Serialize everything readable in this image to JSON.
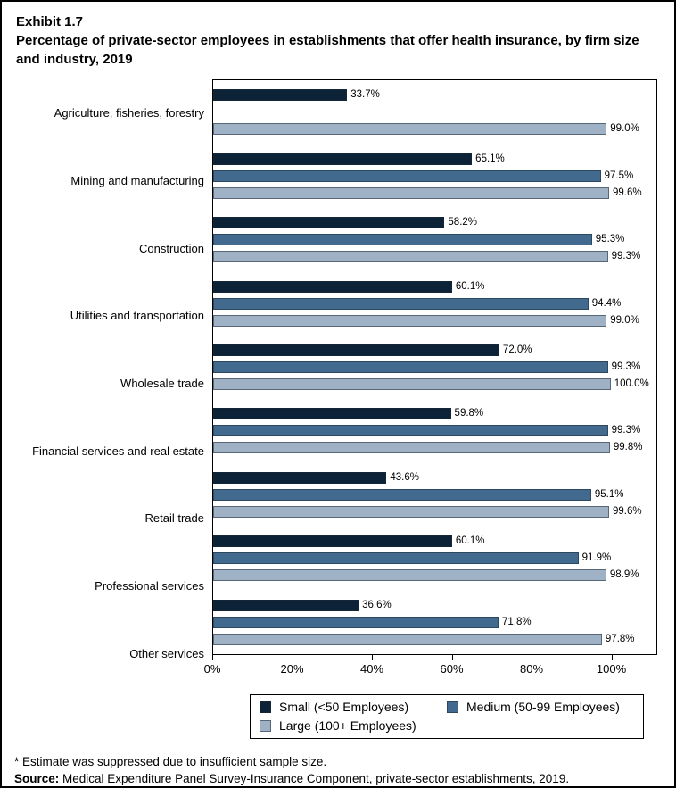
{
  "header": {
    "exhibit_label": "Exhibit 1.7",
    "title": "Percentage of private-sector employees in establishments that offer health insurance, by firm size and industry, 2019"
  },
  "chart_data": {
    "type": "bar",
    "orientation": "horizontal",
    "title": "Percentage of private-sector employees in establishments that offer health insurance, by firm size and industry, 2019",
    "xlabel": "",
    "ylabel": "",
    "xlim": [
      0,
      100
    ],
    "axis_display_max": 111.5,
    "grid": false,
    "legend_position": "bottom",
    "value_suffix": "%",
    "categories": [
      "Agriculture, fisheries, forestry",
      "Mining and manufacturing",
      "Construction",
      "Utilities and transportation",
      "Wholesale trade",
      "Financial services and real estate",
      "Retail trade",
      "Professional services",
      "Other services"
    ],
    "series": [
      {
        "key": "small",
        "name": "Small (<50 Employees)",
        "color": "#0c2337",
        "values": [
          33.7,
          65.1,
          58.2,
          60.1,
          72.0,
          59.8,
          43.6,
          60.1,
          36.6
        ],
        "value_labels": [
          "33.7%",
          "65.1%",
          "58.2%",
          "60.1%",
          "72.0%",
          "59.8%",
          "43.6%",
          "60.1%",
          "36.6%"
        ]
      },
      {
        "key": "medium",
        "name": "Medium (50-99 Employees)",
        "color": "#416a8e",
        "values": [
          null,
          97.5,
          95.3,
          94.4,
          99.3,
          99.3,
          95.1,
          91.9,
          71.8
        ],
        "value_labels": [
          null,
          "97.5%",
          "95.3%",
          "94.4%",
          "99.3%",
          "99.3%",
          "95.1%",
          "91.9%",
          "71.8%"
        ],
        "suppressed_categories": [
          "Agriculture, fisheries, forestry"
        ]
      },
      {
        "key": "large",
        "name": "Large (100+ Employees)",
        "color": "#9fb1c5",
        "values": [
          99.0,
          99.6,
          99.3,
          99.0,
          100.0,
          99.8,
          99.6,
          98.9,
          97.8
        ],
        "value_labels": [
          "99.0%",
          "99.6%",
          "99.3%",
          "99.0%",
          "100.0%",
          "99.8%",
          "99.6%",
          "98.9%",
          "97.8%"
        ]
      }
    ],
    "x_ticks": [
      "0%",
      "20%",
      "40%",
      "60%",
      "80%",
      "100%"
    ],
    "x_tick_values": [
      0,
      20,
      40,
      60,
      80,
      100
    ]
  },
  "footnotes": {
    "line1": "* Estimate was suppressed due to insufficient sample size.",
    "source_label": "Source:",
    "source_text": " Medical Expenditure Panel Survey-Insurance Component, private-sector establishments, 2019."
  }
}
